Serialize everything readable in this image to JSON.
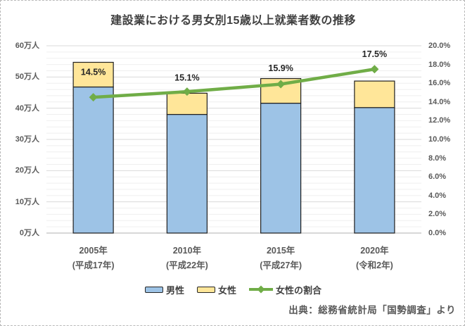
{
  "title": "建設業における男女別15歳以上就業者数の推移",
  "source": "出典：総務省統計局「国勢調査」より",
  "legend": {
    "male": "男性",
    "female": "女性",
    "ratio": "女性の割合"
  },
  "colors": {
    "male_bar": "#9DC3E6",
    "female_bar": "#FFE699",
    "ratio_line": "#70AD47",
    "bar_border": "#1f1f1f",
    "grid_major": "#d9d9d9",
    "grid_minor": "#efefef",
    "axis_line": "#bfbfbf",
    "data_label": "#262626"
  },
  "chart_data": {
    "type": "bar",
    "subtype": "stacked-bars-with-line",
    "title": "建設業における男女別15歳以上就業者数の推移",
    "categories": [
      "2005年",
      "2010年",
      "2015年",
      "2020年"
    ],
    "category_sublabels": [
      "(平成17年)",
      "(平成22年)",
      "(平成27年)",
      "(令和2年)"
    ],
    "series": [
      {
        "name": "男性",
        "type": "bar",
        "axis": "left",
        "unit": "万人",
        "values": [
          46.8,
          38.0,
          41.6,
          40.2
        ]
      },
      {
        "name": "女性",
        "type": "bar",
        "axis": "left",
        "unit": "万人",
        "values": [
          7.9,
          6.8,
          7.9,
          8.5
        ]
      },
      {
        "name": "女性の割合",
        "type": "line",
        "axis": "right",
        "unit": "%",
        "values": [
          14.5,
          15.1,
          15.9,
          17.5
        ],
        "data_labels": [
          "14.5%",
          "15.1%",
          "15.9%",
          "17.5%"
        ]
      }
    ],
    "left_axis": {
      "min": 0,
      "max": 60,
      "step": 10,
      "minor_step": 2,
      "ticks": [
        "0万人",
        "10万人",
        "20万人",
        "30万人",
        "40万人",
        "50万人",
        "60万人"
      ]
    },
    "right_axis": {
      "min": 0,
      "max": 20,
      "step": 2,
      "ticks": [
        "0.0%",
        "2.0%",
        "4.0%",
        "6.0%",
        "8.0%",
        "10.0%",
        "12.0%",
        "14.0%",
        "16.0%",
        "18.0%",
        "20.0%"
      ]
    },
    "grid": true,
    "legend_position": "bottom",
    "legend_entries": [
      "男性",
      "女性",
      "女性の割合"
    ]
  }
}
